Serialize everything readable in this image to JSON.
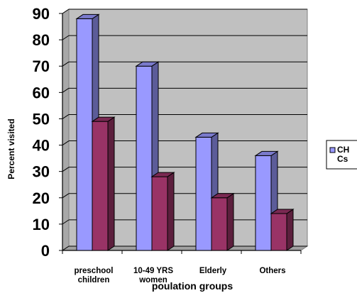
{
  "chart_data": {
    "type": "bar",
    "three_d": true,
    "categories": [
      [
        "preschool",
        "children"
      ],
      [
        "10-49 YRS",
        "women"
      ],
      [
        "Elderly"
      ],
      [
        "Others"
      ]
    ],
    "series": [
      {
        "name": "CH Cs",
        "values": [
          88,
          70,
          43,
          36
        ],
        "color": "#9999ff"
      },
      {
        "name": "",
        "values": [
          49,
          28,
          20,
          14
        ],
        "color": "#993366"
      }
    ],
    "legend_lines": [
      "CH",
      "Cs"
    ],
    "xlabel": "poulation groups",
    "ylabel": "Percent visited",
    "ylim": [
      0,
      90
    ],
    "yticks": [
      "0",
      "10",
      "20",
      "30",
      "40",
      "50",
      "60",
      "70",
      "80",
      "90"
    ],
    "grid": true,
    "wall_color": "#c0c0c0",
    "legend_position": "right"
  }
}
